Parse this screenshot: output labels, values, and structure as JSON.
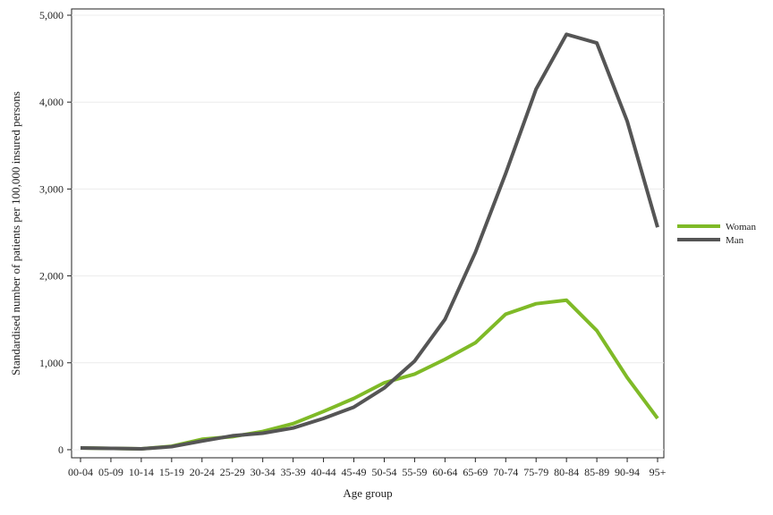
{
  "chart_data": {
    "type": "line",
    "x_label": "Age group",
    "y_label": "Standardised number of patients per 100,000 insured persons",
    "categories": [
      "00-04",
      "05-09",
      "10-14",
      "15-19",
      "20-24",
      "25-29",
      "30-34",
      "35-39",
      "40-44",
      "45-49",
      "50-54",
      "55-59",
      "60-64",
      "65-69",
      "70-74",
      "75-79",
      "80-84",
      "85-89",
      "90-94",
      "95+"
    ],
    "series": [
      {
        "name": "Woman",
        "color": "#7fba27",
        "values": [
          20,
          15,
          10,
          40,
          120,
          150,
          210,
          300,
          440,
          590,
          770,
          870,
          1040,
          1230,
          1560,
          1680,
          1720,
          1370,
          830,
          360
        ]
      },
      {
        "name": "Man",
        "color": "#555555",
        "values": [
          20,
          15,
          10,
          35,
          100,
          160,
          190,
          250,
          360,
          490,
          710,
          1020,
          1500,
          2270,
          3180,
          4150,
          4780,
          4680,
          3780,
          2560
        ]
      }
    ],
    "ylim": [
      -93,
      5072
    ],
    "yticks": [
      0,
      {
        "value": 1000,
        "label": "1,000"
      },
      {
        "value": 2000,
        "label": "2,000"
      },
      {
        "value": 3000,
        "label": "3,000"
      },
      {
        "value": 4000,
        "label": "4,000"
      },
      {
        "value": 5000,
        "label": "5,000"
      }
    ],
    "grid": true,
    "legend": "right"
  }
}
